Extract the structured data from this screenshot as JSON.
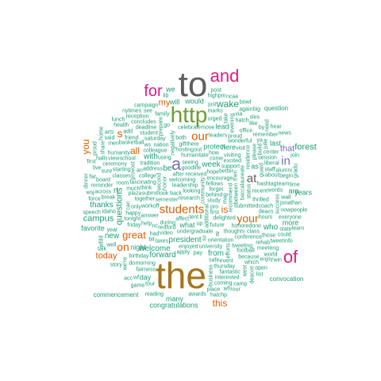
{
  "palette": {
    "grey": "#5f5f5f",
    "magenta": "#e01e84",
    "green": "#6a9f2f",
    "brown": "#a6761d",
    "orange": "#d95f02",
    "purple": "#7570b3",
    "teal": "#1b9e77"
  },
  "words": [
    {
      "text": "to",
      "color": "grey"
    },
    {
      "text": "and",
      "color": "magenta"
    },
    {
      "text": "for",
      "color": "magenta"
    },
    {
      "text": "http",
      "color": "green"
    },
    {
      "text": "the",
      "color": "brown"
    },
    {
      "text": "of",
      "color": "magenta"
    },
    {
      "text": "a",
      "color": "purple"
    },
    {
      "text": "our",
      "color": "orange"
    },
    {
      "text": "students",
      "color": "orange"
    },
    {
      "text": "at",
      "color": "grey"
    },
    {
      "text": "in",
      "color": "purple"
    },
    {
      "text": "is",
      "color": "orange"
    },
    {
      "text": "your",
      "color": "orange"
    },
    {
      "text": "on",
      "color": "orange"
    },
    {
      "text": "this",
      "color": "orange"
    },
    {
      "text": "great",
      "color": "orange"
    },
    {
      "text": "you",
      "color": "orange"
    },
    {
      "text": "s",
      "color": "orange"
    },
    {
      "text": "all",
      "color": "orange"
    },
    {
      "text": "my",
      "color": "orange"
    },
    {
      "text": "today",
      "color": "orange"
    },
    {
      "text": "that",
      "color": "purple"
    },
    {
      "text": "wake",
      "color": "teal"
    },
    {
      "text": "forest",
      "color": "teal"
    },
    {
      "text": "questions",
      "color": "teal"
    },
    {
      "text": "campus",
      "color": "teal"
    },
    {
      "text": "new",
      "color": "teal"
    },
    {
      "text": "forward",
      "color": "teal"
    },
    {
      "text": "welcome",
      "color": "teal"
    },
    {
      "text": "president",
      "color": "teal"
    },
    {
      "text": "who",
      "color": "teal"
    },
    {
      "text": "with",
      "color": "teal"
    },
    {
      "text": "be",
      "color": "teal"
    },
    {
      "text": "thanks",
      "color": "teal"
    },
    {
      "text": "rt",
      "color": "teal"
    },
    {
      "text": "week",
      "color": "teal"
    },
    {
      "text": "we",
      "color": "teal"
    },
    {
      "text": "will",
      "color": "teal"
    },
    {
      "text": "would",
      "color": "teal"
    },
    {
      "text": "from",
      "color": "teal"
    },
    {
      "text": "day",
      "color": "teal"
    },
    {
      "text": "here",
      "color": "teal"
    },
    {
      "text": "what",
      "color": "teal"
    },
    {
      "text": "it",
      "color": "teal"
    },
    {
      "text": "are",
      "color": "teal"
    },
    {
      "text": "years",
      "color": "teal"
    },
    {
      "text": "last",
      "color": "teal"
    },
    {
      "text": "lead",
      "color": "teal"
    },
    {
      "text": "protect",
      "color": "teal"
    },
    {
      "text": "as",
      "color": "teal"
    },
    {
      "text": "more",
      "color": "teal"
    },
    {
      "text": "favorite",
      "color": "teal"
    },
    {
      "text": "night",
      "color": "teal"
    },
    {
      "text": "many",
      "color": "teal"
    },
    {
      "text": "congratulations",
      "color": "teal"
    },
    {
      "text": "convocation",
      "color": "teal"
    },
    {
      "text": "question",
      "color": "teal"
    },
    {
      "text": "commencement",
      "color": "teal"
    },
    {
      "text": "looking",
      "color": "teal"
    },
    {
      "text": "community",
      "color": "teal"
    },
    {
      "text": "research",
      "color": "teal"
    },
    {
      "text": "leadership",
      "color": "teal"
    },
    {
      "text": "welcoming",
      "color": "teal"
    },
    {
      "text": "received",
      "color": "teal"
    },
    {
      "text": "behind",
      "color": "teal"
    },
    {
      "text": "look back",
      "color": "teal"
    },
    {
      "text": "additional",
      "color": "teal"
    },
    {
      "text": "fellows",
      "color": "teal"
    },
    {
      "text": "study",
      "color": "teal"
    },
    {
      "text": "tent",
      "color": "teal"
    },
    {
      "text": "encourage",
      "color": "teal"
    },
    {
      "text": "forget",
      "color": "teal"
    },
    {
      "text": "semester",
      "color": "teal"
    },
    {
      "text": "recommend",
      "color": "teal"
    },
    {
      "text": "good",
      "color": "teal"
    },
    {
      "text": "seeing",
      "color": "teal"
    },
    {
      "text": "humanitate",
      "color": "teal"
    },
    {
      "text": "pro",
      "color": "teal"
    },
    {
      "text": "undergraduate",
      "color": "teal"
    },
    {
      "text": "first",
      "color": "teal"
    },
    {
      "text": "second",
      "color": "teal"
    },
    {
      "text": "affect",
      "color": "teal"
    },
    {
      "text": "delighted",
      "color": "teal"
    },
    {
      "text": "hope",
      "color": "teal"
    },
    {
      "text": "during",
      "color": "teal"
    },
    {
      "text": "better",
      "color": "teal"
    },
    {
      "text": "future",
      "color": "teal"
    },
    {
      "text": "honor",
      "color": "teal"
    },
    {
      "text": "redford",
      "color": "teal"
    },
    {
      "text": "hosting",
      "color": "teal"
    },
    {
      "text": "come",
      "color": "teal"
    },
    {
      "text": "submit",
      "color": "teal"
    },
    {
      "text": "workoff",
      "color": "teal"
    },
    {
      "text": "fascinating",
      "color": "teal"
    },
    {
      "text": "between",
      "color": "teal"
    },
    {
      "text": "support",
      "color": "teal"
    },
    {
      "text": "college",
      "color": "teal"
    },
    {
      "text": "after",
      "color": "teal"
    },
    {
      "text": "life",
      "color": "teal"
    },
    {
      "text": "using",
      "color": "teal"
    },
    {
      "text": "together",
      "color": "teal"
    },
    {
      "text": "baccalaureate",
      "color": "teal"
    },
    {
      "text": "submitted",
      "color": "teal"
    },
    {
      "text": "there",
      "color": "teal"
    },
    {
      "text": "think",
      "color": "teal"
    },
    {
      "text": "address",
      "color": "teal"
    },
    {
      "text": "answer",
      "color": "teal"
    },
    {
      "text": "enjoyed",
      "color": "teal"
    },
    {
      "text": "negatively",
      "color": "teal"
    },
    {
      "text": "orientation",
      "color": "teal"
    },
    {
      "text": "video",
      "color": "teal"
    },
    {
      "text": "excited",
      "color": "teal"
    },
    {
      "text": "university",
      "color": "teal"
    },
    {
      "text": "honored",
      "color": "teal"
    },
    {
      "text": "colleague",
      "color": "teal"
    },
    {
      "text": "status",
      "color": "teal"
    },
    {
      "text": "thoughts",
      "color": "teal"
    },
    {
      "text": "tradition",
      "color": "teal"
    },
    {
      "text": "plaza",
      "color": "teal"
    },
    {
      "text": "apply",
      "color": "teal"
    },
    {
      "text": "nc",
      "color": "teal"
    },
    {
      "text": "visiting",
      "color": "teal"
    },
    {
      "text": "residence",
      "color": "teal"
    },
    {
      "text": "celebrate",
      "color": "teal"
    },
    {
      "text": "happy",
      "color": "teal"
    },
    {
      "text": "leaders",
      "color": "teal"
    },
    {
      "text": "taxes",
      "color": "teal"
    },
    {
      "text": "help",
      "color": "teal"
    },
    {
      "text": "nation",
      "color": "teal"
    },
    {
      "text": "provost",
      "color": "teal"
    },
    {
      "text": "conference",
      "color": "teal"
    },
    {
      "text": "recent",
      "color": "teal"
    },
    {
      "text": "saturday",
      "color": "teal"
    },
    {
      "text": "pay",
      "color": "teal"
    },
    {
      "text": "tonight",
      "color": "teal"
    },
    {
      "text": "wonderful",
      "color": "teal"
    },
    {
      "text": "efforts",
      "color": "teal"
    },
    {
      "text": "much",
      "color": "teal"
    },
    {
      "text": "only",
      "color": "teal"
    },
    {
      "text": "thrilled",
      "color": "teal"
    },
    {
      "text": "hashtag",
      "color": "teal"
    },
    {
      "text": "school",
      "color": "teal"
    },
    {
      "text": "room",
      "color": "teal"
    },
    {
      "text": "guard",
      "color": "teal"
    },
    {
      "text": "tweeting",
      "color": "teal"
    },
    {
      "text": "move",
      "color": "teal"
    },
    {
      "text": "both",
      "color": "teal"
    },
    {
      "text": "how",
      "color": "teal"
    },
    {
      "text": "student",
      "color": "teal"
    },
    {
      "text": "classes",
      "color": "teal"
    },
    {
      "text": "please",
      "color": "teal"
    },
    {
      "text": "proud",
      "color": "teal"
    },
    {
      "text": "class",
      "color": "teal"
    },
    {
      "text": "had",
      "color": "teal"
    },
    {
      "text": "event",
      "color": "teal"
    },
    {
      "text": "football",
      "color": "teal"
    },
    {
      "text": "friday",
      "color": "teal"
    },
    {
      "text": "prepare",
      "color": "teal"
    },
    {
      "text": "deacs",
      "color": "teal"
    },
    {
      "text": "hours",
      "color": "teal"
    },
    {
      "text": "thursday",
      "color": "teal"
    },
    {
      "text": "visit",
      "color": "teal"
    },
    {
      "text": "starting",
      "color": "teal"
    },
    {
      "text": "coach",
      "color": "teal"
    },
    {
      "text": "mag",
      "color": "teal"
    },
    {
      "text": "deadline",
      "color": "teal"
    },
    {
      "text": "staff",
      "color": "teal"
    },
    {
      "text": "basketball",
      "color": "teal"
    },
    {
      "text": "urged",
      "color": "teal"
    },
    {
      "text": "session",
      "color": "teal"
    },
    {
      "text": "words",
      "color": "teal"
    },
    {
      "text": "evening",
      "color": "teal"
    },
    {
      "text": "because",
      "color": "teal"
    },
    {
      "text": "ceremony",
      "color": "teal"
    },
    {
      "text": "office",
      "color": "teal"
    },
    {
      "text": "morning",
      "color": "teal"
    },
    {
      "text": "fantastic",
      "color": "teal"
    },
    {
      "text": "gift",
      "color": "teal"
    },
    {
      "text": "success",
      "color": "teal"
    },
    {
      "text": "about",
      "color": "teal"
    },
    {
      "text": "rehab",
      "color": "teal"
    },
    {
      "text": "humanity",
      "color": "teal"
    },
    {
      "text": "concludes",
      "color": "teal"
    },
    {
      "text": "birthday",
      "color": "teal"
    },
    {
      "text": "break",
      "color": "teal"
    },
    {
      "text": "build",
      "color": "teal"
    },
    {
      "text": "family",
      "color": "teal"
    },
    {
      "text": "remember",
      "color": "teal"
    },
    {
      "text": "interested",
      "color": "teal"
    },
    {
      "text": "hatch",
      "color": "teal"
    },
    {
      "text": "those",
      "color": "teal"
    },
    {
      "text": "reminder",
      "color": "teal"
    },
    {
      "text": "business",
      "color": "teal"
    },
    {
      "text": "idaho",
      "color": "teal"
    },
    {
      "text": "liberal",
      "color": "teal"
    },
    {
      "text": "which",
      "color": "teal"
    },
    {
      "text": "marks",
      "color": "teal"
    },
    {
      "text": "friend",
      "color": "teal"
    },
    {
      "text": "meet",
      "color": "teal"
    },
    {
      "text": "take",
      "color": "teal"
    },
    {
      "text": "sure",
      "color": "teal"
    },
    {
      "text": "year",
      "color": "teal"
    },
    {
      "text": "up",
      "color": "teal"
    },
    {
      "text": "fairness",
      "color": "teal"
    },
    {
      "text": "reception",
      "color": "teal"
    },
    {
      "text": "jonathan",
      "color": "teal"
    },
    {
      "text": "then",
      "color": "teal"
    },
    {
      "text": "begin",
      "color": "teal"
    },
    {
      "text": "across",
      "color": "teal"
    },
    {
      "text": "center",
      "color": "teal"
    },
    {
      "text": "board",
      "color": "teal"
    },
    {
      "text": "safe",
      "color": "teal"
    },
    {
      "text": "alumni",
      "color": "teal"
    },
    {
      "text": "julie",
      "color": "teal"
    },
    {
      "text": "add",
      "color": "teal"
    },
    {
      "text": "view",
      "color": "teal"
    },
    {
      "text": "could",
      "color": "teal"
    },
    {
      "text": "wall",
      "color": "teal"
    },
    {
      "text": "coming",
      "color": "teal"
    },
    {
      "text": "everyone",
      "color": "teal"
    },
    {
      "text": "west",
      "color": "teal"
    },
    {
      "text": "team",
      "color": "teal"
    },
    {
      "text": "men",
      "color": "teal"
    },
    {
      "text": "bit",
      "color": "teal"
    },
    {
      "text": "just",
      "color": "teal"
    },
    {
      "text": "out",
      "color": "teal"
    },
    {
      "text": "like",
      "color": "teal"
    },
    {
      "text": "can",
      "color": "teal"
    },
    {
      "text": "one",
      "color": "teal"
    },
    {
      "text": "via",
      "color": "teal"
    },
    {
      "text": "go",
      "color": "teal"
    },
    {
      "text": "now",
      "color": "teal"
    },
    {
      "text": "an",
      "color": "teal"
    },
    {
      "text": "by",
      "color": "teal"
    },
    {
      "text": "so",
      "color": "teal"
    },
    {
      "text": "do",
      "color": "teal"
    },
    {
      "text": "see",
      "color": "teal"
    },
    {
      "text": "ws",
      "color": "teal"
    },
    {
      "text": "world",
      "color": "teal"
    },
    {
      "text": "well",
      "color": "teal"
    },
    {
      "text": "again",
      "color": "teal"
    },
    {
      "text": "we're",
      "color": "teal"
    },
    {
      "text": "tweet",
      "color": "teal"
    },
    {
      "text": "eng",
      "color": "teal"
    },
    {
      "text": "far",
      "color": "teal"
    },
    {
      "text": "enjoy",
      "color": "teal"
    },
    {
      "text": "live",
      "color": "teal"
    },
    {
      "text": "force",
      "color": "teal"
    },
    {
      "text": "deacon",
      "color": "teal"
    },
    {
      "text": "place",
      "color": "teal"
    },
    {
      "text": "camp",
      "color": "teal"
    },
    {
      "text": "state",
      "color": "teal"
    },
    {
      "text": "high",
      "color": "teal"
    },
    {
      "text": "campaign",
      "color": "teal"
    },
    {
      "text": "halls",
      "color": "teal"
    },
    {
      "text": "share",
      "color": "teal"
    },
    {
      "text": "speech",
      "color": "teal"
    },
    {
      "text": "awards",
      "color": "teal"
    },
    {
      "text": "people",
      "color": "teal"
    },
    {
      "text": "tour",
      "color": "teal"
    },
    {
      "text": "health",
      "color": "teal"
    },
    {
      "text": "time",
      "color": "teal"
    },
    {
      "text": "need",
      "color": "teal"
    },
    {
      "text": "said",
      "color": "teal"
    },
    {
      "text": "open",
      "color": "teal"
    },
    {
      "text": "pm",
      "color": "teal"
    },
    {
      "text": "ya",
      "color": "teal"
    },
    {
      "text": "ll",
      "color": "teal"
    },
    {
      "text": "nytimes",
      "color": "teal"
    },
    {
      "text": "wfdd",
      "color": "teal"
    },
    {
      "text": "wfu",
      "color": "teal"
    },
    {
      "text": "hatchp",
      "color": "teal"
    },
    {
      "text": "sles",
      "color": "teal"
    },
    {
      "text": "wf",
      "color": "teal"
    },
    {
      "text": "lib",
      "color": "teal"
    },
    {
      "text": "arts",
      "color": "teal"
    },
    {
      "text": "gradu",
      "color": "teal"
    },
    {
      "text": "wsj",
      "color": "teal"
    },
    {
      "text": "ncaa",
      "color": "teal"
    },
    {
      "text": "acc",
      "color": "teal"
    },
    {
      "text": "bowl",
      "color": "teal"
    },
    {
      "text": "post",
      "color": "teal"
    },
    {
      "text": "story",
      "color": "teal"
    },
    {
      "text": "proud",
      "color": "teal"
    },
    {
      "text": "learn",
      "color": "teal"
    },
    {
      "text": "talk",
      "color": "teal"
    },
    {
      "text": "hear",
      "color": "teal"
    },
    {
      "text": "info",
      "color": "teal"
    },
    {
      "text": "list",
      "color": "teal"
    },
    {
      "text": "lunch",
      "color": "teal"
    },
    {
      "text": "dinner",
      "color": "teal"
    },
    {
      "text": "join",
      "color": "teal"
    },
    {
      "text": "reading",
      "color": "teal"
    },
    {
      "text": "news",
      "color": "teal"
    },
    {
      "text": "big",
      "color": "teal"
    },
    {
      "text": "game",
      "color": "teal"
    },
    {
      "text": "win",
      "color": "teal"
    },
    {
      "text": "home",
      "color": "teal"
    },
    {
      "text": "our",
      "color": "teal"
    },
    {
      "text": "first",
      "color": "teal"
    }
  ]
}
